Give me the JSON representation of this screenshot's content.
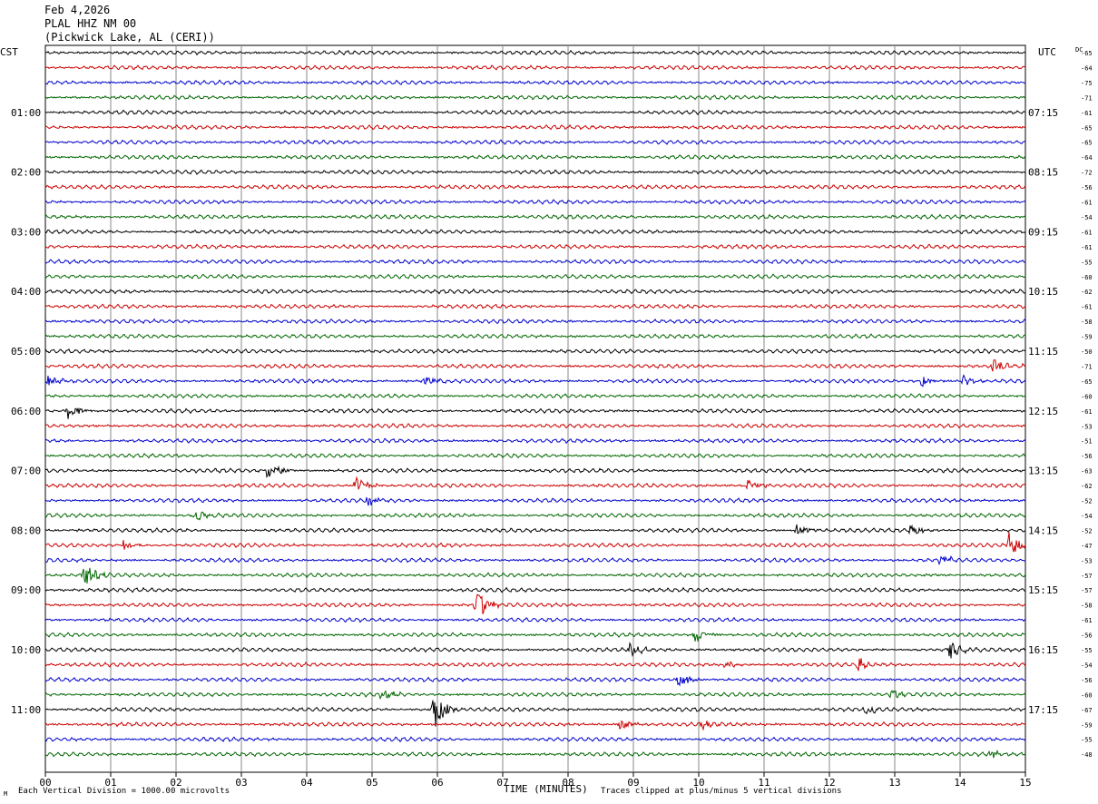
{
  "header": {
    "date": "Feb 4,2026",
    "station": "PLAL HHZ NM 00",
    "location": "(Pickwick Lake, AL (CERI))"
  },
  "chart_data": {
    "type": "line",
    "title": "",
    "xlabel": "TIME (MINUTES)",
    "ylabel": "",
    "left_timezone": "CST",
    "right_timezone": "UTC",
    "dc_label": "DC",
    "xlim": [
      0,
      15
    ],
    "x_tick_labels": [
      "00",
      "01",
      "02",
      "03",
      "04",
      "05",
      "06",
      "07",
      "08",
      "09",
      "10",
      "11",
      "12",
      "13",
      "14",
      "15"
    ],
    "grid": true,
    "left_hour_labels": [
      "01:00",
      "02:00",
      "03:00",
      "04:00",
      "05:00",
      "06:00",
      "07:00",
      "08:00",
      "09:00",
      "10:00",
      "11:00"
    ],
    "right_hour_labels": [
      "07:15",
      "08:15",
      "09:15",
      "10:15",
      "11:15",
      "12:15",
      "13:15",
      "14:15",
      "15:15",
      "16:15",
      "17:15"
    ],
    "trace_colors": [
      "#000000",
      "#cc0000",
      "#0000cc",
      "#006600"
    ],
    "dc_offsets": [
      -65,
      -64,
      -75,
      -71,
      -61,
      -65,
      -65,
      -64,
      -72,
      -56,
      -61,
      -54,
      -61,
      -61,
      -55,
      -60,
      -62,
      -61,
      -58,
      -59,
      -50,
      -71,
      -65,
      -60,
      -61,
      -53,
      -51,
      -56,
      -63,
      -62,
      -52,
      -54,
      -52,
      -47,
      -53,
      -57,
      -57,
      -58,
      -61,
      -56,
      -55,
      -54,
      -56,
      -60,
      -67,
      -59,
      -55,
      -48
    ],
    "events": [
      {
        "trace": 21,
        "minute": 14.5,
        "amplitude": 1.4
      },
      {
        "trace": 22,
        "minute": 0.05,
        "amplitude": 1.2
      },
      {
        "trace": 22,
        "minute": 5.8,
        "amplitude": 1.0
      },
      {
        "trace": 22,
        "minute": 13.4,
        "amplitude": 1.0
      },
      {
        "trace": 22,
        "minute": 14.05,
        "amplitude": 1.0
      },
      {
        "trace": 24,
        "minute": 0.35,
        "amplitude": 1.6
      },
      {
        "trace": 28,
        "minute": 3.4,
        "amplitude": 2.0
      },
      {
        "trace": 29,
        "minute": 4.75,
        "amplitude": 1.5
      },
      {
        "trace": 29,
        "minute": 10.75,
        "amplitude": 1.0
      },
      {
        "trace": 30,
        "minute": 4.95,
        "amplitude": 1.2
      },
      {
        "trace": 31,
        "minute": 2.3,
        "amplitude": 1.0
      },
      {
        "trace": 32,
        "minute": 11.5,
        "amplitude": 1.2
      },
      {
        "trace": 32,
        "minute": 13.25,
        "amplitude": 1.0
      },
      {
        "trace": 33,
        "minute": 1.2,
        "amplitude": 0.8
      },
      {
        "trace": 33,
        "minute": 14.75,
        "amplitude": 2.2
      },
      {
        "trace": 34,
        "minute": 13.7,
        "amplitude": 1.0
      },
      {
        "trace": 35,
        "minute": 0.6,
        "amplitude": 2.2
      },
      {
        "trace": 37,
        "minute": 6.6,
        "amplitude": 2.6
      },
      {
        "trace": 39,
        "minute": 9.95,
        "amplitude": 1.4
      },
      {
        "trace": 40,
        "minute": 8.95,
        "amplitude": 1.0
      },
      {
        "trace": 40,
        "minute": 13.85,
        "amplitude": 1.6
      },
      {
        "trace": 41,
        "minute": 12.45,
        "amplitude": 1.2
      },
      {
        "trace": 41,
        "minute": 10.4,
        "amplitude": 0.8
      },
      {
        "trace": 42,
        "minute": 9.7,
        "amplitude": 1.2
      },
      {
        "trace": 43,
        "minute": 5.15,
        "amplitude": 1.0
      },
      {
        "trace": 43,
        "minute": 12.95,
        "amplitude": 0.8
      },
      {
        "trace": 44,
        "minute": 5.95,
        "amplitude": 3.2
      },
      {
        "trace": 44,
        "minute": 12.55,
        "amplitude": 1.0
      },
      {
        "trace": 45,
        "minute": 8.8,
        "amplitude": 0.9
      },
      {
        "trace": 45,
        "minute": 10.05,
        "amplitude": 0.8
      },
      {
        "trace": 47,
        "minute": 14.45,
        "amplitude": 0.7
      }
    ]
  },
  "footer": {
    "scale_note": "Each Vertical Division = 1000.00 microvolts",
    "clip_note": "Traces clipped at plus/minus 5 vertical divisions",
    "corner_mark": "M"
  }
}
